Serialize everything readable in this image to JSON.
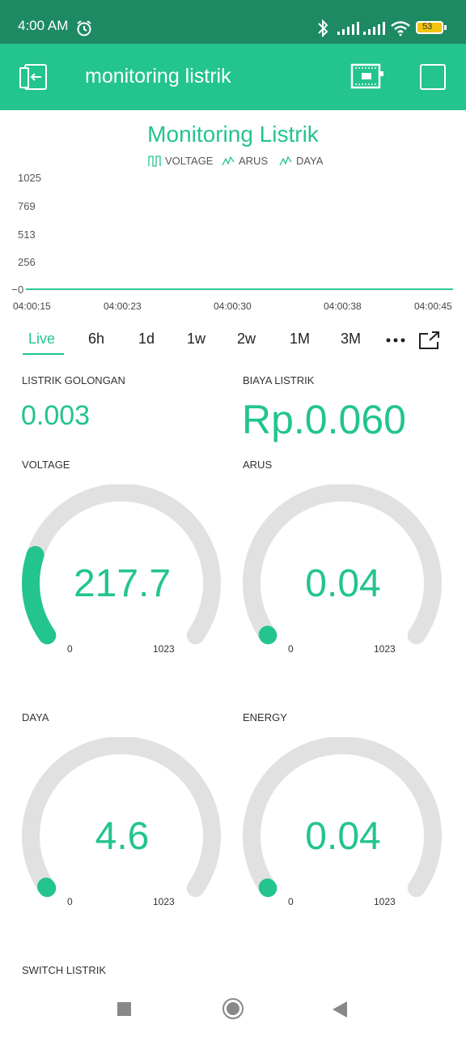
{
  "status": {
    "time": "4:00 AM",
    "battery": "53"
  },
  "appbar": {
    "title": "monitoring listrik"
  },
  "chart_data": {
    "type": "line",
    "title": "Monitoring Listrik",
    "series": [
      {
        "name": "VOLTAGE",
        "values": [
          0,
          0,
          0,
          0,
          0
        ]
      },
      {
        "name": "ARUS",
        "values": [
          0,
          0,
          0,
          0,
          0
        ]
      },
      {
        "name": "DAYA",
        "values": [
          0,
          0,
          0,
          0,
          0
        ]
      }
    ],
    "x": [
      "04:00:15",
      "04:00:23",
      "04:00:30",
      "04:00:38",
      "04:00:45"
    ],
    "yticks": [
      "1025",
      "769",
      "513",
      "256",
      "0"
    ],
    "ylim": [
      0,
      1025
    ],
    "legend": "top-center"
  },
  "ranges": [
    "Live",
    "6h",
    "1d",
    "1w",
    "2w",
    "1M",
    "3M"
  ],
  "widgets": {
    "golongan": {
      "label": "LISTRIK GOLONGAN",
      "value": "0.003"
    },
    "biaya": {
      "label": "BIAYA LISTRIK",
      "value": "Rp.0.060"
    }
  },
  "gauges": [
    {
      "label": "VOLTAGE",
      "value": "217.7",
      "min": "0",
      "max": "1023",
      "fraction": 0.2128
    },
    {
      "label": "ARUS",
      "value": "0.04",
      "min": "0",
      "max": "1023",
      "fraction": 0.0
    },
    {
      "label": "DAYA",
      "value": "4.6",
      "min": "0",
      "max": "1023",
      "fraction": 0.0045
    },
    {
      "label": "ENERGY",
      "value": "0.04",
      "min": "0",
      "max": "1023",
      "fraction": 0.0
    }
  ],
  "switch": {
    "label": "SWITCH LISTRIK"
  },
  "colors": {
    "accent": "#23c48e",
    "statusbar": "#1d8a63",
    "track": "#e1e1e1"
  }
}
